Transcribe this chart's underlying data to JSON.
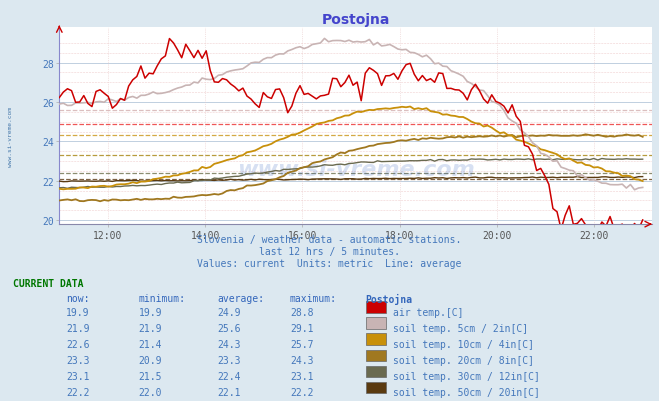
{
  "title": "Postojna",
  "subtitle1": "Slovenia / weather data - automatic stations.",
  "subtitle2": "last 12 hrs / 5 minutes.",
  "subtitle3": "Values: current  Units: metric  Line: average",
  "watermark": "www.si-vreme.com",
  "bg_color": "#dce8f0",
  "plot_bg_color": "#ffffff",
  "x_ticks_hours": [
    12,
    14,
    16,
    18,
    20,
    22
  ],
  "yticks": [
    20,
    22,
    24,
    26,
    28
  ],
  "series": {
    "air_temp": {
      "color": "#cc0000",
      "label": "air temp.[C]",
      "now": 19.9,
      "min": 19.9,
      "avg": 24.9,
      "max": 28.8
    },
    "soil_5cm": {
      "color": "#c8b4b4",
      "label": "soil temp. 5cm / 2in[C]",
      "now": 21.9,
      "min": 21.9,
      "avg": 25.6,
      "max": 29.1
    },
    "soil_10cm": {
      "color": "#c8900a",
      "label": "soil temp. 10cm / 4in[C]",
      "now": 22.6,
      "min": 21.4,
      "avg": 24.3,
      "max": 25.7
    },
    "soil_20cm": {
      "color": "#a07820",
      "label": "soil temp. 20cm / 8in[C]",
      "now": 23.3,
      "min": 20.9,
      "avg": 23.3,
      "max": 24.3
    },
    "soil_30cm": {
      "color": "#6a6a50",
      "label": "soil temp. 30cm / 12in[C]",
      "now": 23.1,
      "min": 21.5,
      "avg": 22.4,
      "max": 23.1
    },
    "soil_50cm": {
      "color": "#5a3a10",
      "label": "soil temp. 50cm / 20in[C]",
      "now": 22.2,
      "min": 22.0,
      "avg": 22.1,
      "max": 22.2
    }
  },
  "avg_colors": {
    "air_temp": "#ee4444",
    "soil_5cm": "#d8b8b8",
    "soil_10cm": "#d0a030",
    "soil_20cm": "#b09028",
    "soil_30cm": "#808060",
    "soil_50cm": "#705030"
  },
  "current_data_label": "CURRENT DATA",
  "table_headers": [
    "now:",
    "minimum:",
    "average:",
    "maximum:",
    "Postojna"
  ],
  "table_color": "#4477bb",
  "header_color": "#3366bb",
  "title_color": "#4444cc",
  "green_label_color": "#007700"
}
